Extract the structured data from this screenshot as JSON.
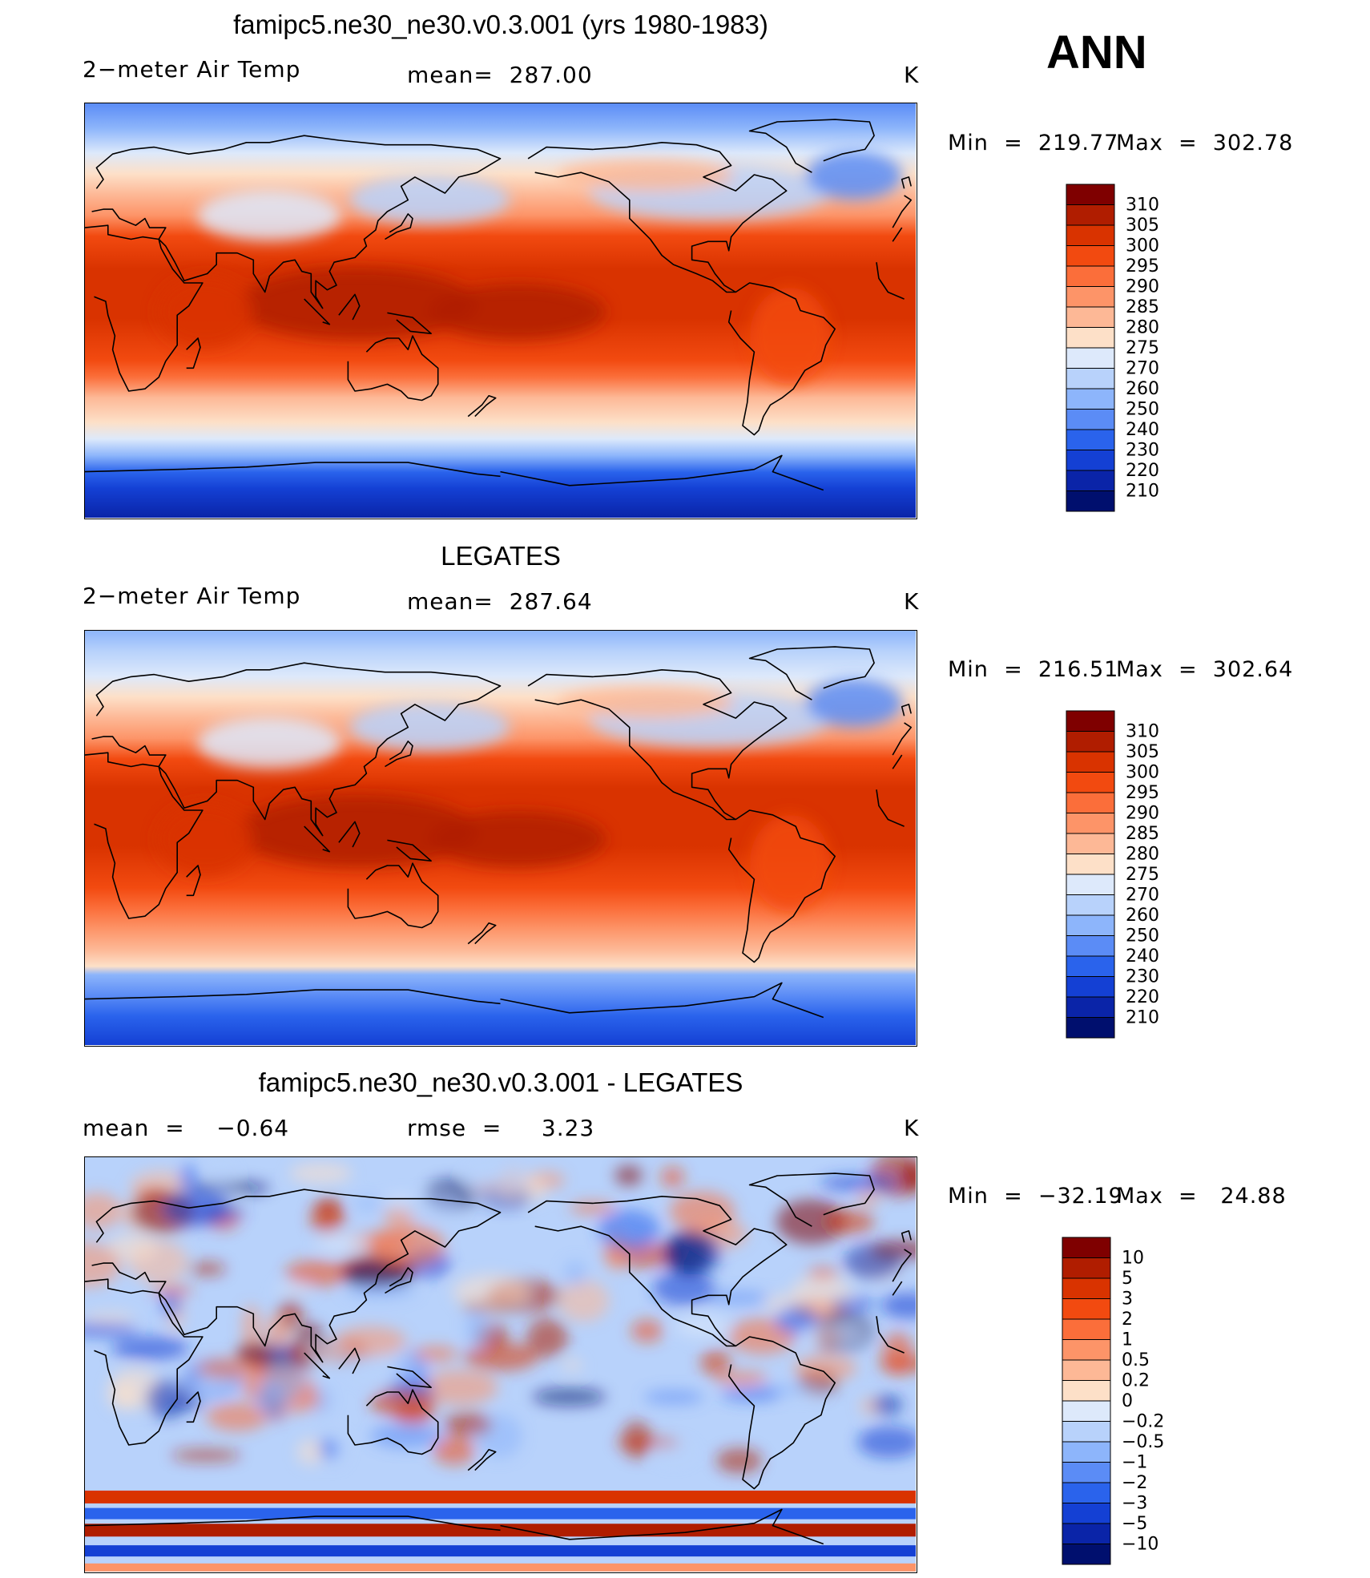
{
  "season": "ANN",
  "panels": [
    {
      "title": "famipc5.ne30_ne30.v0.3.001 (yrs 1980-1983)",
      "left_label": "2−meter Air Temp",
      "center_label": "mean=  287.00",
      "right_label": "K",
      "min_label": "Min  =  219.77",
      "max_label": "Max  =  302.78",
      "kind": "field",
      "colorbar": {
        "labels": [
          "310",
          "305",
          "300",
          "295",
          "290",
          "285",
          "280",
          "275",
          "270",
          "260",
          "250",
          "240",
          "230",
          "220",
          "210"
        ],
        "colors": [
          "#7f0000",
          "#b01d00",
          "#d93300",
          "#f24a10",
          "#fb6e3a",
          "#fd9468",
          "#fdb896",
          "#fde0c8",
          "#dde9fb",
          "#b8d2fb",
          "#8db5fb",
          "#5b8cf6",
          "#2a63ec",
          "#1440d4",
          "#0a24a8",
          "#000f6e"
        ]
      }
    },
    {
      "title": "LEGATES",
      "left_label": "2−meter Air Temp",
      "center_label": "mean=  287.64",
      "right_label": "K",
      "min_label": "Min  =  216.51",
      "max_label": "Max  =  302.64",
      "kind": "field",
      "colorbar": {
        "labels": [
          "310",
          "305",
          "300",
          "295",
          "290",
          "285",
          "280",
          "275",
          "270",
          "260",
          "250",
          "240",
          "230",
          "220",
          "210"
        ],
        "colors": [
          "#7f0000",
          "#b01d00",
          "#d93300",
          "#f24a10",
          "#fb6e3a",
          "#fd9468",
          "#fdb896",
          "#fde0c8",
          "#dde9fb",
          "#b8d2fb",
          "#8db5fb",
          "#5b8cf6",
          "#2a63ec",
          "#1440d4",
          "#0a24a8",
          "#000f6e"
        ]
      }
    },
    {
      "title": "famipc5.ne30_ne30.v0.3.001 - LEGATES",
      "left_label": "mean  =    −0.64",
      "center_label": "rmse  =     3.23",
      "right_label": "K",
      "min_label": "Min  =  −32.19",
      "max_label": "Max  =   24.88",
      "kind": "diff",
      "colorbar": {
        "labels": [
          "10",
          "5",
          "3",
          "2",
          "1",
          "0.5",
          "0.2",
          "0",
          "−0.2",
          "−0.5",
          "−1",
          "−2",
          "−3",
          "−5",
          "−10"
        ],
        "colors": [
          "#7f0000",
          "#b01d00",
          "#d93300",
          "#f24a10",
          "#fb6e3a",
          "#fd9468",
          "#fdb896",
          "#fde0c8",
          "#dde9fb",
          "#b8d2fb",
          "#8db5fb",
          "#5b8cf6",
          "#2a63ec",
          "#1440d4",
          "#0a24a8",
          "#000f6e"
        ]
      }
    }
  ]
}
